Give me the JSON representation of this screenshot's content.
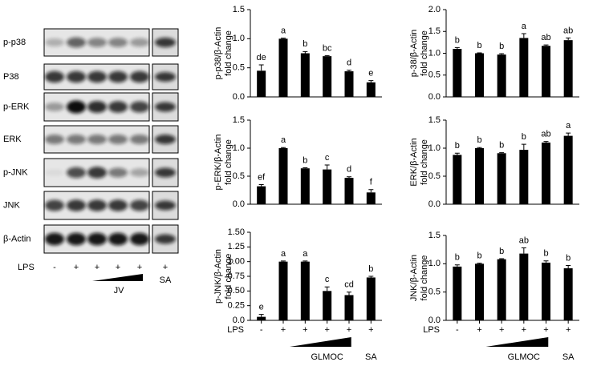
{
  "blot": {
    "rows": [
      "p-p38",
      "P38",
      "p-ERK",
      "ERK",
      "p-JNK",
      "JNK",
      "β-Actin"
    ],
    "lps_label": "LPS",
    "lps": [
      "-",
      "+",
      "+",
      "+",
      "+",
      "+"
    ],
    "dose_label": "JV",
    "sa_label": "SA"
  },
  "chart_data": [
    {
      "type": "bar",
      "ylabel": [
        "p-p38/β-Actin",
        "fold change"
      ],
      "ylim": [
        0,
        1.5
      ],
      "yticks": [
        {
          "value": 0,
          "label": "0.0"
        },
        {
          "value": 0.5,
          "label": "0.5"
        },
        {
          "value": 1,
          "label": "1.0"
        },
        {
          "value": 1.5,
          "label": "1.5"
        }
      ],
      "values": [
        0.45,
        1.0,
        0.75,
        0.7,
        0.44,
        0.25
      ],
      "errors": [
        0.1,
        0.01,
        0.03,
        0.01,
        0.02,
        0.03
      ],
      "annotations": [
        "de",
        "a",
        "b",
        "bc",
        "d",
        "e"
      ],
      "color": "#000000"
    },
    {
      "type": "bar",
      "ylabel": [
        "p-38/β-Actin",
        "fold change"
      ],
      "ylim": [
        0,
        2
      ],
      "yticks": [
        {
          "value": 0,
          "label": "0.0"
        },
        {
          "value": 0.5,
          "label": "0.5"
        },
        {
          "value": 1,
          "label": "1.0"
        },
        {
          "value": 1.5,
          "label": "1.5"
        },
        {
          "value": 2,
          "label": "2.0"
        }
      ],
      "values": [
        1.1,
        1.0,
        0.97,
        1.35,
        1.17,
        1.3
      ],
      "errors": [
        0.03,
        0.01,
        0.02,
        0.1,
        0.02,
        0.05
      ],
      "annotations": [
        "b",
        "b",
        "b",
        "a",
        "ab",
        "ab"
      ],
      "color": "#000000"
    },
    {
      "type": "bar",
      "ylabel": [
        "p-ERK/β-Actin",
        "fold change"
      ],
      "ylim": [
        0,
        1.5
      ],
      "yticks": [
        {
          "value": 0,
          "label": "0.0"
        },
        {
          "value": 0.5,
          "label": "0.5"
        },
        {
          "value": 1,
          "label": "1.0"
        },
        {
          "value": 1.5,
          "label": "1.5"
        }
      ],
      "values": [
        0.32,
        1.0,
        0.64,
        0.62,
        0.47,
        0.21
      ],
      "errors": [
        0.03,
        0.01,
        0.01,
        0.08,
        0.02,
        0.05
      ],
      "annotations": [
        "ef",
        "a",
        "b",
        "c",
        "d",
        "f"
      ],
      "color": "#000000"
    },
    {
      "type": "bar",
      "ylabel": [
        "ERK/β-Actin",
        "fold change"
      ],
      "ylim": [
        0,
        1.5
      ],
      "yticks": [
        {
          "value": 0,
          "label": "0.0"
        },
        {
          "value": 0.5,
          "label": "0.5"
        },
        {
          "value": 1,
          "label": "1.0"
        },
        {
          "value": 1.5,
          "label": "1.5"
        }
      ],
      "values": [
        0.88,
        1.0,
        0.91,
        0.97,
        1.1,
        1.22
      ],
      "errors": [
        0.03,
        0.01,
        0.01,
        0.1,
        0.02,
        0.05
      ],
      "annotations": [
        "b",
        "b",
        "b",
        "b",
        "ab",
        "a"
      ],
      "color": "#000000"
    },
    {
      "type": "bar",
      "ylabel": [
        "p-JNK/β-Actin",
        "fold change"
      ],
      "ylim": [
        0,
        1.5
      ],
      "yticks": [
        {
          "value": 0,
          "label": "0.0"
        },
        {
          "value": 0.25,
          "label": "0.25"
        },
        {
          "value": 0.5,
          "label": "0.50"
        },
        {
          "value": 0.75,
          "label": "0.75"
        },
        {
          "value": 1,
          "label": "1.00"
        },
        {
          "value": 1.25,
          "label": "1.25"
        },
        {
          "value": 1.5,
          "label": "1.50"
        }
      ],
      "values": [
        0.06,
        1.0,
        1.0,
        0.5,
        0.43,
        0.73
      ],
      "errors": [
        0.04,
        0.01,
        0.01,
        0.07,
        0.05,
        0.02
      ],
      "annotations": [
        "e",
        "a",
        "a",
        "c",
        "cd",
        "b"
      ],
      "color": "#000000",
      "x_label": "LPS",
      "categories": [
        "-",
        "+",
        "+",
        "+",
        "+",
        "+"
      ],
      "dose_label": "GLMOC",
      "sa_label": "SA"
    },
    {
      "type": "bar",
      "ylabel": [
        "JNK/β-Actin",
        "fold change"
      ],
      "ylim": [
        0,
        1.5
      ],
      "yticks": [
        {
          "value": 0,
          "label": "0.0"
        },
        {
          "value": 0.5,
          "label": "0.5"
        },
        {
          "value": 1,
          "label": "1.0"
        },
        {
          "value": 1.5,
          "label": "1.5"
        }
      ],
      "values": [
        0.95,
        1.0,
        1.08,
        1.18,
        1.02,
        0.92
      ],
      "errors": [
        0.03,
        0.01,
        0.01,
        0.1,
        0.03,
        0.05
      ],
      "annotations": [
        "b",
        "b",
        "b",
        "ab",
        "b",
        "b"
      ],
      "color": "#000000",
      "x_label": "LPS",
      "categories": [
        "-",
        "+",
        "+",
        "+",
        "+",
        "+"
      ],
      "dose_label": "GLMOC",
      "sa_label": "SA"
    }
  ]
}
